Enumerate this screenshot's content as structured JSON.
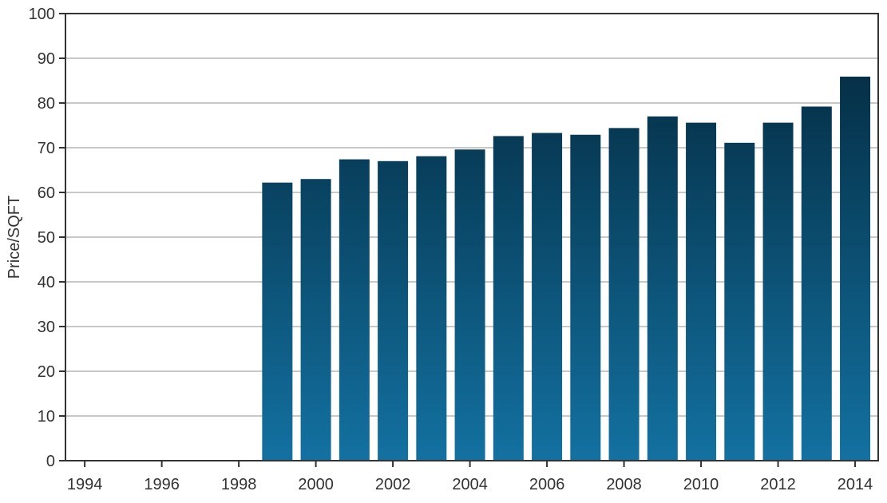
{
  "chart_data": {
    "type": "bar",
    "title": "",
    "xlabel": "",
    "ylabel": "Price/SQFT",
    "categories": [
      "1999",
      "2000",
      "2001",
      "2002",
      "2003",
      "2004",
      "2005",
      "2006",
      "2007",
      "2008",
      "2009",
      "2010",
      "2011",
      "2012",
      "2013",
      "2014"
    ],
    "values": [
      62.2,
      63.0,
      67.4,
      67.0,
      68.1,
      69.6,
      72.6,
      73.3,
      72.9,
      74.4,
      77.0,
      75.6,
      71.1,
      75.6,
      79.2,
      85.9
    ],
    "x_tick_labels": [
      "1994",
      "1996",
      "1998",
      "2000",
      "2002",
      "2004",
      "2006",
      "2008",
      "2010",
      "2012",
      "2014"
    ],
    "x_tick_values": [
      1994,
      1996,
      1998,
      2000,
      2002,
      2004,
      2006,
      2008,
      2010,
      2012,
      2014
    ],
    "xlim": [
      1993.5,
      2014.6
    ],
    "y_tick_labels": [
      "0",
      "10",
      "20",
      "30",
      "40",
      "50",
      "60",
      "70",
      "80",
      "90",
      "100"
    ],
    "ylim": [
      0,
      100
    ],
    "grid": "horizontal",
    "legend": "none",
    "colors": {
      "bar_top": "#042a3f",
      "bar_bottom": "#1371a1",
      "grid": "#c8c8c8",
      "axis": "#333333"
    }
  }
}
